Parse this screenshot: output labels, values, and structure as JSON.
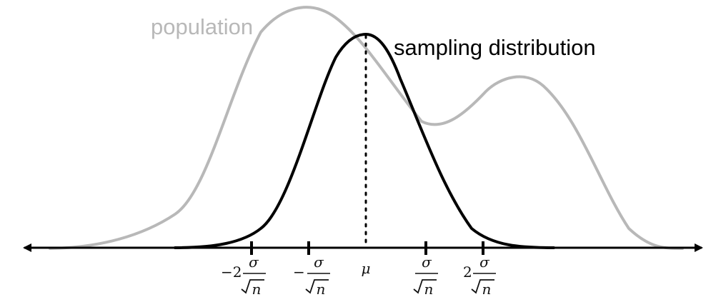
{
  "labels": {
    "population": "population",
    "sampling": "sampling distribution"
  },
  "colors": {
    "population": "#b8b8b8",
    "sampling": "#000000",
    "axis": "#000000",
    "text": "#111111"
  },
  "ticks": [
    {
      "prefix": "−2",
      "numerator": "σ",
      "denominator": "n",
      "kind": "fraction"
    },
    {
      "prefix": "−",
      "numerator": "σ",
      "denominator": "n",
      "kind": "fraction"
    },
    {
      "symbol": "μ",
      "kind": "mean"
    },
    {
      "prefix": "",
      "numerator": "σ",
      "denominator": "n",
      "kind": "fraction"
    },
    {
      "prefix": "2",
      "numerator": "σ",
      "denominator": "n",
      "kind": "fraction"
    }
  ]
}
